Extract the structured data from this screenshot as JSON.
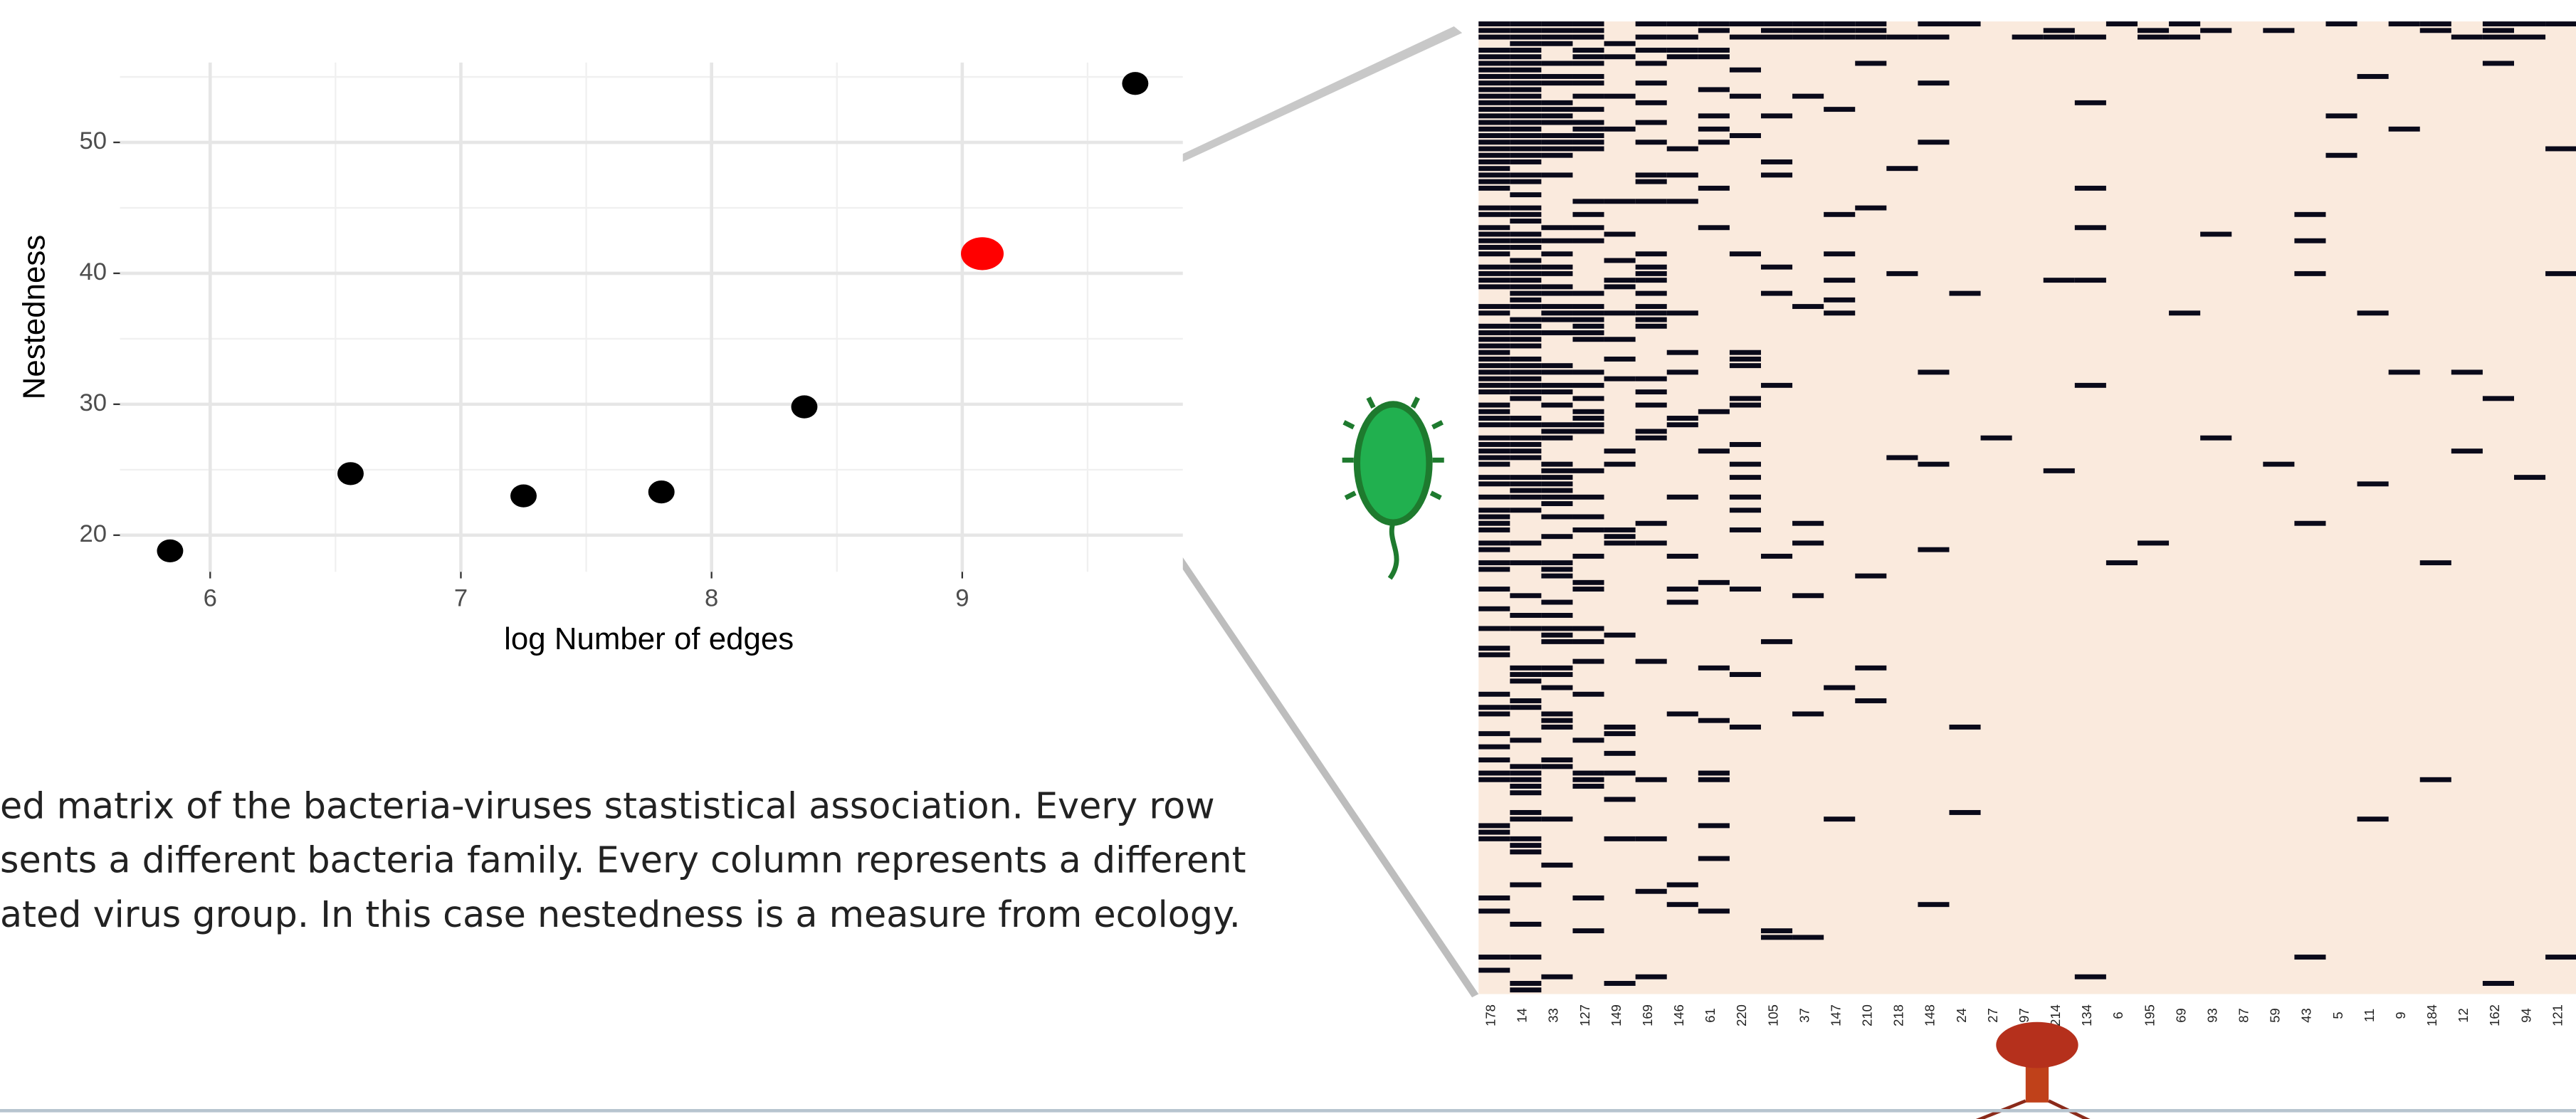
{
  "chart_data": {
    "type": "scatter",
    "x_label": "log Number of edges",
    "y_label": "Nestedness",
    "x": [
      5.84,
      6.56,
      7.25,
      7.8,
      8.37,
      9.08,
      9.69
    ],
    "values": [
      18.8,
      24.7,
      23.0,
      23.3,
      29.8,
      41.5,
      54.5
    ],
    "colors": [
      "#000000",
      "#000000",
      "#000000",
      "#000000",
      "#000000",
      "#ff0000",
      "#000000"
    ],
    "xlim": [
      5.64,
      9.88
    ],
    "ylim": [
      17.2,
      56.1
    ],
    "xticks": [
      6,
      7,
      8,
      9
    ],
    "yticks": [
      20,
      30,
      40,
      50
    ],
    "minor_xticks": [
      6.5,
      7.5,
      8.5,
      9.5
    ],
    "minor_yticks": [
      25,
      35,
      45,
      55
    ],
    "grid": true
  },
  "caption": {
    "lines": [
      "ed matrix of the bacteria-viruses stastistical association. Every row",
      "sents a different bacteria family. Every column represents a different",
      "ated virus group. In this case nestedness is a measure from ecology."
    ]
  },
  "heatmap": {
    "column_labels": [
      "178",
      "14",
      "33",
      "127",
      "149",
      "169",
      "146",
      "61",
      "220",
      "105",
      "37",
      "147",
      "210",
      "218",
      "148",
      "24",
      "27",
      "97",
      "214",
      "134",
      "6",
      "195",
      "69",
      "93",
      "87",
      "59",
      "43",
      "5",
      "11",
      "9",
      "184",
      "12",
      "162",
      "94",
      "121"
    ]
  }
}
